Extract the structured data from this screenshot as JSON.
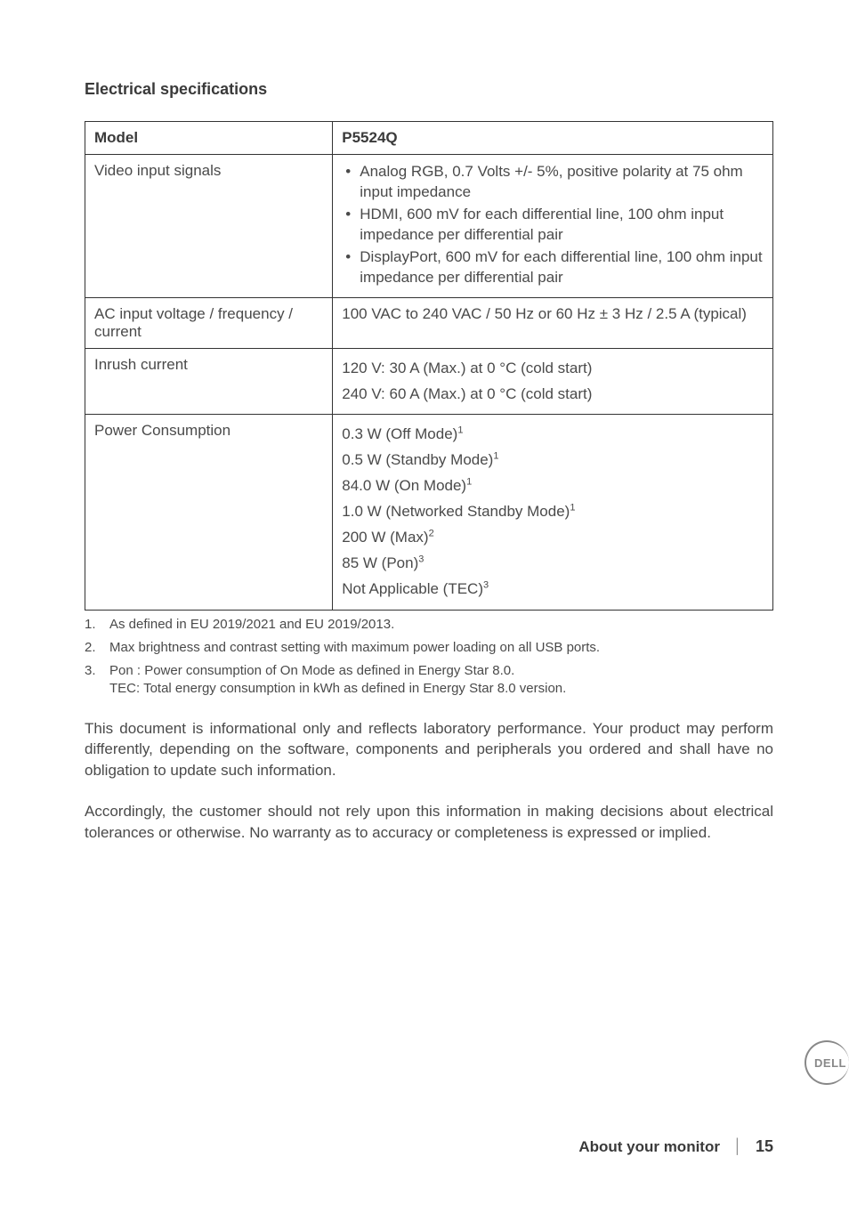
{
  "section_title": "Electrical specifications",
  "table": {
    "header": {
      "col1": "Model",
      "col2": "P5524Q"
    },
    "rows": [
      {
        "label": "Video input signals",
        "bullets": [
          "Analog RGB, 0.7 Volts +/- 5%, positive polarity at 75 ohm input impedance",
          "HDMI, 600 mV for each differential line, 100 ohm input impedance per differential pair",
          "DisplayPort, 600 mV for each differential line, 100 ohm input impedance per differential pair"
        ]
      },
      {
        "label": "AC input voltage / frequency / current",
        "text": "100 VAC to 240 VAC / 50 Hz or 60 Hz ± 3 Hz / 2.5 A (typical)"
      },
      {
        "label": "Inrush current",
        "lines": [
          "120 V: 30 A (Max.) at 0 °C (cold start)",
          "240 V: 60 A (Max.) at 0 °C (cold start)"
        ]
      },
      {
        "label": "Power Consumption",
        "power": [
          {
            "text": "0.3 W (Off Mode)",
            "sup": "1"
          },
          {
            "text": "0.5 W (Standby Mode)",
            "sup": "1"
          },
          {
            "text": "84.0 W (On Mode)",
            "sup": "1"
          },
          {
            "text": "1.0 W (Networked Standby Mode)",
            "sup": "1"
          },
          {
            "text": "200 W (Max)",
            "sup": "2"
          },
          {
            "text": "85 W (Pon)",
            "sup": "3"
          },
          {
            "text": "Not Applicable (TEC)",
            "sup": "3"
          }
        ]
      }
    ]
  },
  "footnotes": [
    {
      "num": "1.",
      "text": "As defined in EU 2019/2021 and EU 2019/2013."
    },
    {
      "num": "2.",
      "text": "Max brightness and contrast setting with maximum power loading on all USB ports."
    },
    {
      "num": "3.",
      "text": "Pon : Power consumption of On Mode as defined in Energy Star 8.0.\nTEC: Total energy consumption in kWh as defined in Energy Star 8.0 version."
    }
  ],
  "disclaimer": [
    "This document is informational only and reflects laboratory performance. Your product may perform differently, depending on the software, components and peripherals you ordered and shall have no obligation to update such information.",
    "Accordingly, the customer should not rely upon this information in making decisions about electrical tolerances or otherwise. No warranty as to accuracy or completeness is expressed or implied."
  ],
  "footer": {
    "section": "About your monitor",
    "page": "15"
  },
  "logo": "DELL"
}
